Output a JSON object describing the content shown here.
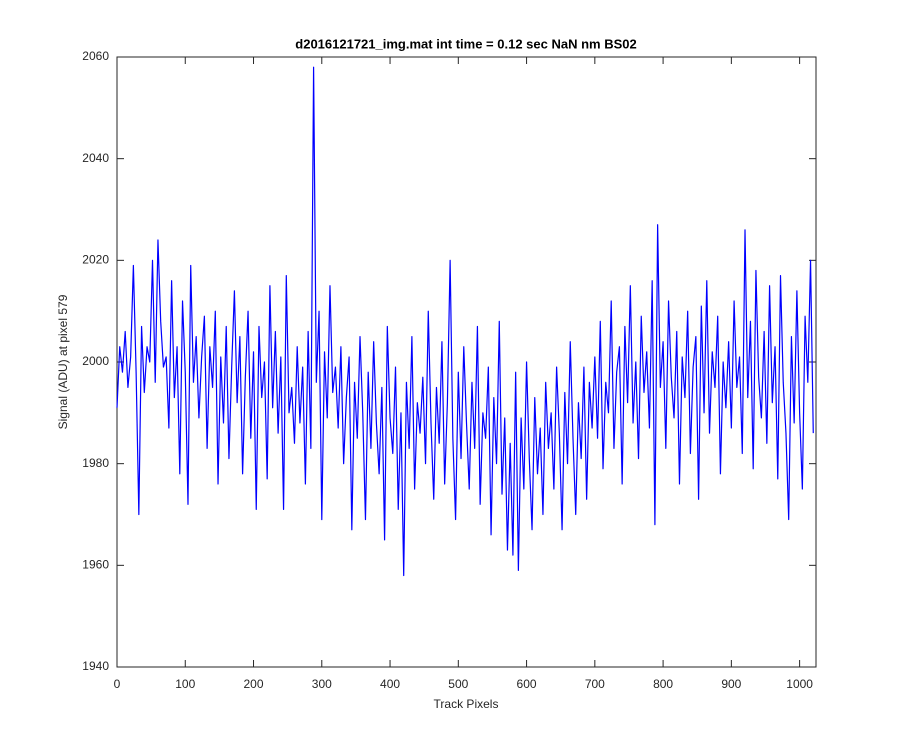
{
  "chart_data": {
    "type": "line",
    "title": "d2016121721_img.mat int time = 0.12 sec  NaN nm BS02",
    "xlabel": "Track Pixels",
    "ylabel": "Signal (ADU) at pixel 579",
    "color": "#0000ff",
    "xlim": [
      0,
      1024
    ],
    "ylim": [
      1940,
      2060
    ],
    "xticks": [
      0,
      100,
      200,
      300,
      400,
      500,
      600,
      700,
      800,
      900,
      1000
    ],
    "yticks": [
      1940,
      1960,
      1980,
      2000,
      2020,
      2040,
      2060
    ],
    "x": [
      0,
      4,
      8,
      12,
      16,
      20,
      24,
      28,
      32,
      36,
      40,
      44,
      48,
      52,
      56,
      60,
      64,
      68,
      72,
      76,
      80,
      84,
      88,
      92,
      96,
      100,
      104,
      108,
      112,
      116,
      120,
      124,
      128,
      132,
      136,
      140,
      144,
      148,
      152,
      156,
      160,
      164,
      168,
      172,
      176,
      180,
      184,
      188,
      192,
      196,
      200,
      204,
      208,
      212,
      216,
      220,
      224,
      228,
      232,
      236,
      240,
      244,
      248,
      252,
      256,
      260,
      264,
      268,
      272,
      276,
      280,
      284,
      288,
      292,
      296,
      300,
      304,
      308,
      312,
      316,
      320,
      324,
      328,
      332,
      336,
      340,
      344,
      348,
      352,
      356,
      360,
      364,
      368,
      372,
      376,
      380,
      384,
      388,
      392,
      396,
      400,
      404,
      408,
      412,
      416,
      420,
      424,
      428,
      432,
      436,
      440,
      444,
      448,
      452,
      456,
      460,
      464,
      468,
      472,
      476,
      480,
      484,
      488,
      492,
      496,
      500,
      504,
      508,
      512,
      516,
      520,
      524,
      528,
      532,
      536,
      540,
      544,
      548,
      552,
      556,
      560,
      564,
      568,
      572,
      576,
      580,
      584,
      588,
      592,
      596,
      600,
      604,
      608,
      612,
      616,
      620,
      624,
      628,
      632,
      636,
      640,
      644,
      648,
      652,
      656,
      660,
      664,
      668,
      672,
      676,
      680,
      684,
      688,
      692,
      696,
      700,
      704,
      708,
      712,
      716,
      720,
      724,
      728,
      732,
      736,
      740,
      744,
      748,
      752,
      756,
      760,
      764,
      768,
      772,
      776,
      780,
      784,
      788,
      792,
      796,
      800,
      804,
      808,
      812,
      816,
      820,
      824,
      828,
      832,
      836,
      840,
      844,
      848,
      852,
      856,
      860,
      864,
      868,
      872,
      876,
      880,
      884,
      888,
      892,
      896,
      900,
      904,
      908,
      912,
      916,
      920,
      924,
      928,
      932,
      936,
      940,
      944,
      948,
      952,
      956,
      960,
      964,
      968,
      972,
      976,
      980,
      984,
      988,
      992,
      996,
      1000,
      1004,
      1008,
      1012,
      1016,
      1020
    ],
    "values": [
      1991,
      2003,
      1998,
      2006,
      1995,
      2001,
      2019,
      1998,
      1970,
      2007,
      1994,
      2003,
      2000,
      2020,
      1996,
      2024,
      2008,
      1999,
      2001,
      1987,
      2016,
      1993,
      2003,
      1978,
      2012,
      1998,
      1972,
      2019,
      1996,
      2005,
      1989,
      2001,
      2009,
      1983,
      2003,
      1995,
      2010,
      1976,
      2001,
      1988,
      2007,
      1981,
      1999,
      2014,
      1992,
      2005,
      1978,
      1997,
      2010,
      1985,
      2002,
      1971,
      2007,
      1993,
      2000,
      1977,
      2015,
      1991,
      2006,
      1986,
      2001,
      1971,
      2017,
      1990,
      1995,
      1984,
      2003,
      1988,
      1999,
      1976,
      2006,
      1983,
      2058,
      1996,
      2010,
      1969,
      2002,
      1989,
      2015,
      1994,
      1999,
      1987,
      2003,
      1980,
      1993,
      2001,
      1967,
      1996,
      1985,
      2005,
      1990,
      1969,
      1998,
      1983,
      2004,
      1988,
      1978,
      1995,
      1965,
      2007,
      1989,
      1982,
      1999,
      1971,
      1990,
      1958,
      1996,
      1983,
      2005,
      1975,
      1992,
      1986,
      1997,
      1980,
      2010,
      1988,
      1973,
      1995,
      1984,
      2004,
      1976,
      1992,
      2020,
      1985,
      1969,
      1998,
      1981,
      2003,
      1988,
      1975,
      1996,
      1983,
      2007,
      1972,
      1990,
      1985,
      1999,
      1966,
      1993,
      1980,
      2008,
      1974,
      1989,
      1963,
      1984,
      1962,
      1998,
      1959,
      1989,
      1975,
      2000,
      1981,
      1967,
      1993,
      1978,
      1987,
      1970,
      1996,
      1983,
      1990,
      1975,
      1999,
      1986,
      1967,
      1994,
      1980,
      2004,
      1985,
      1970,
      1992,
      1981,
      1999,
      1973,
      1996,
      1987,
      2001,
      1985,
      2008,
      1979,
      1996,
      1990,
      2012,
      1983,
      1998,
      2003,
      1976,
      2007,
      1992,
      2015,
      1988,
      2000,
      1981,
      2009,
      1994,
      2002,
      1987,
      2016,
      1968,
      2027,
      1995,
      2004,
      1983,
      2012,
      1997,
      1989,
      2006,
      1976,
      2001,
      1993,
      2010,
      1982,
      1999,
      2005,
      1973,
      2011,
      1990,
      2016,
      1986,
      2002,
      1995,
      2009,
      1978,
      2000,
      1991,
      2004,
      1987,
      2012,
      1995,
      2001,
      1982,
      2026,
      1993,
      2008,
      1979,
      2018,
      1997,
      1989,
      2006,
      1984,
      2015,
      1992,
      2003,
      1977,
      2017,
      1996,
      1986,
      1969,
      2005,
      1988,
      2014,
      1990,
      1975,
      2009,
      1996,
      2020,
      1986
    ]
  }
}
